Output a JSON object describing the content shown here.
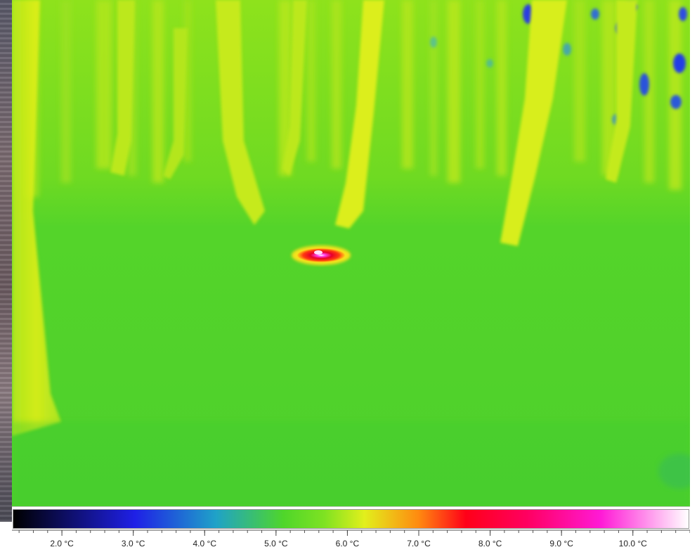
{
  "image": {
    "kind": "thermal camera frame",
    "scene": "forest floor with tree trunks and a small warm animal",
    "palette": {
      "coldest": "#000000",
      "cold": "#1f20e6",
      "cool": "#1fa2c8",
      "mid": "#4fd62a",
      "warm_mid": "#e2ef1c",
      "warm": "#ff8a10",
      "hot": "#ff0018",
      "hotter": "#ff1ad6",
      "hottest": "#ffffff"
    }
  },
  "color_scale": {
    "ticks": [
      {
        "value": 2.0,
        "label": "2.0 °C"
      },
      {
        "value": 3.0,
        "label": "3.0 °C"
      },
      {
        "value": 4.0,
        "label": "4.0 °C"
      },
      {
        "value": 5.0,
        "label": "5.0 °C"
      },
      {
        "value": 6.0,
        "label": "6.0 °C"
      },
      {
        "value": 7.0,
        "label": "7.0 °C"
      },
      {
        "value": 8.0,
        "label": "8.0 °C"
      },
      {
        "value": 9.0,
        "label": "9.0 °C"
      },
      {
        "value": 10.0,
        "label": "10.0 °C"
      }
    ],
    "range": [
      1.3,
      10.8
    ]
  }
}
